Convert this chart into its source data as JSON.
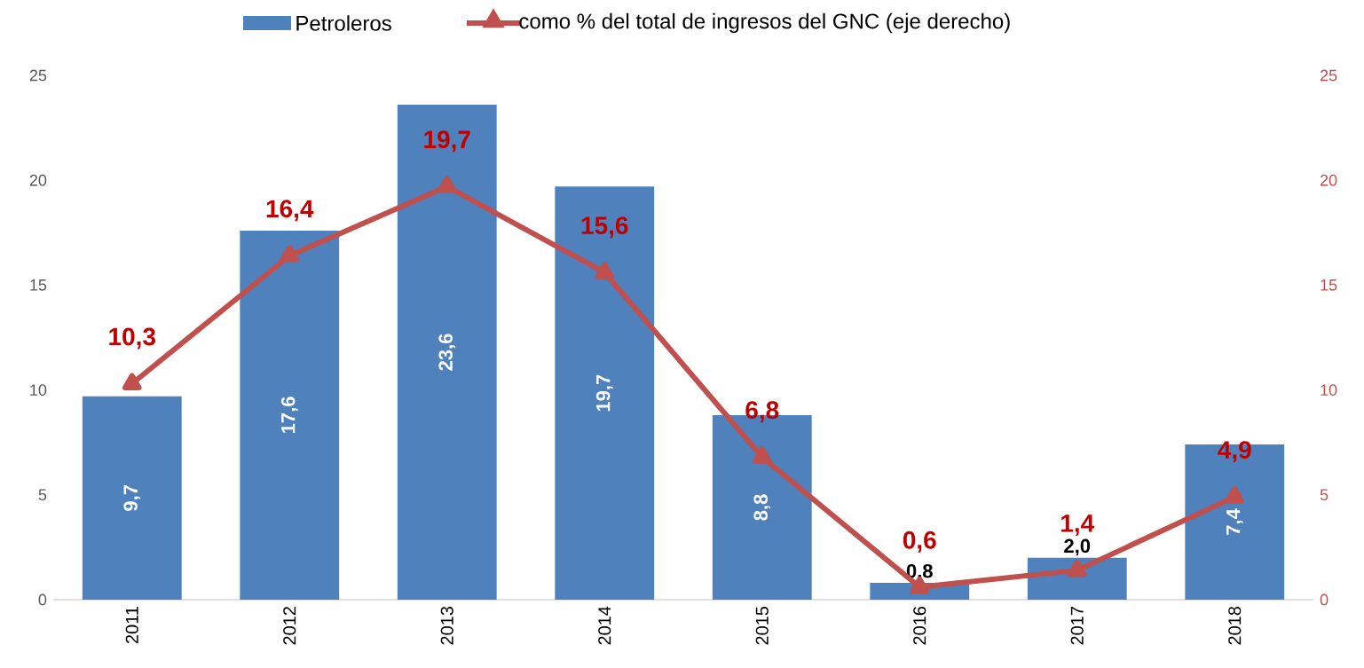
{
  "chart_data": {
    "type": "bar",
    "categories": [
      "2011",
      "2012",
      "2013",
      "2014",
      "2015",
      "2016",
      "2017",
      "2018"
    ],
    "series": [
      {
        "name": "Petroleros",
        "color": "#4f81bd",
        "values": [
          9.7,
          17.6,
          23.6,
          19.7,
          8.8,
          0.8,
          2.0,
          7.4
        ],
        "value_labels": [
          "9,7",
          "17,6",
          "23,6",
          "19,7",
          "8,8",
          "0,8",
          "2,0",
          "7,4"
        ]
      },
      {
        "name": "como % del total de ingresos del GNC (eje derecho)",
        "type": "line",
        "axis": "y2",
        "color": "#c0504d",
        "marker": "triangle",
        "values": [
          10.3,
          16.4,
          19.7,
          15.6,
          6.8,
          0.6,
          1.4,
          4.9
        ],
        "value_labels": [
          "10,3",
          "16,4",
          "19,7",
          "15,6",
          "6,8",
          "0,6",
          "1,4",
          "4,9"
        ]
      }
    ],
    "ylim": [
      0,
      25
    ],
    "yticks": [
      0,
      5,
      10,
      15,
      20,
      25
    ],
    "y2lim": [
      0,
      25
    ],
    "y2ticks": [
      0,
      5,
      10,
      15,
      20,
      25
    ],
    "legend": "top",
    "grid": false
  }
}
